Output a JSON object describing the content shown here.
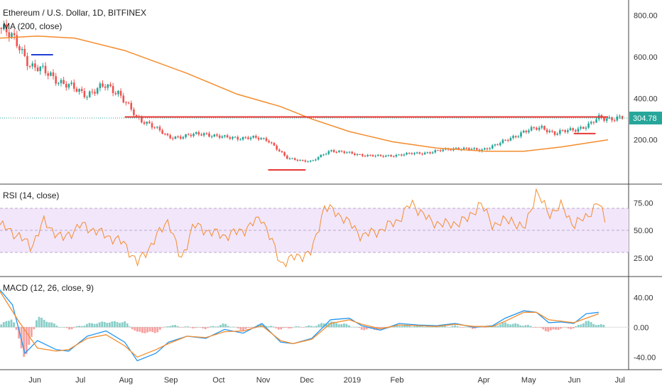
{
  "header": {
    "symbol": "Ethereum / U.S. Dollar, 1D, BITFINEX",
    "ma_label": "MA (200, close)",
    "rsi_label": "RSI (14, close)",
    "macd_label": "MACD (12, 26, close, 9)"
  },
  "colors": {
    "up": "#26a69a",
    "down": "#ef5350",
    "ma": "#f48c2c",
    "rsi_line": "#f48c2c",
    "rsi_band": "#f2e6fb",
    "macd_line": "#2196f3",
    "signal_line": "#f48c2c",
    "resistance": "#e53935",
    "marker_blue": "#1f3fd8",
    "last_price_bg": "#26a69a"
  },
  "chart_data": [
    {
      "type": "candlestick",
      "pane": "price",
      "title": "Ethereum / U.S. Dollar, 1D, BITFINEX",
      "yticks": [
        "800.00",
        "600.00",
        "400.00",
        "200.00"
      ],
      "ytick_values": [
        800,
        600,
        400,
        200
      ],
      "ylim": [
        0,
        860
      ],
      "last_price": "304.78",
      "last_price_value": 304.78,
      "xticks": [
        "Jun",
        "Jul",
        "Aug",
        "Sep",
        "Oct",
        "Nov",
        "Dec",
        "2019",
        "Feb",
        "Apr",
        "May",
        "Jun",
        "Jul"
      ],
      "series": [
        {
          "name": "MA (200, close)",
          "points": [
            [
              0,
              690
            ],
            [
              0.06,
              700
            ],
            [
              0.12,
              690
            ],
            [
              0.2,
              630
            ],
            [
              0.3,
              520
            ],
            [
              0.38,
              420
            ],
            [
              0.45,
              360
            ],
            [
              0.5,
              300
            ],
            [
              0.56,
              240
            ],
            [
              0.63,
              190
            ],
            [
              0.7,
              160
            ],
            [
              0.78,
              145
            ],
            [
              0.84,
              145
            ],
            [
              0.9,
              165
            ],
            [
              0.975,
              200
            ]
          ]
        },
        {
          "name": "close",
          "points": [
            [
              0,
              740
            ],
            [
              0.03,
              660
            ],
            [
              0.05,
              550
            ],
            [
              0.08,
              520
            ],
            [
              0.1,
              470
            ],
            [
              0.14,
              420
            ],
            [
              0.17,
              460
            ],
            [
              0.19,
              430
            ],
            [
              0.22,
              300
            ],
            [
              0.24,
              280
            ],
            [
              0.27,
              210
            ],
            [
              0.3,
              220
            ],
            [
              0.33,
              230
            ],
            [
              0.36,
              210
            ],
            [
              0.4,
              210
            ],
            [
              0.43,
              200
            ],
            [
              0.46,
              110
            ],
            [
              0.5,
              95
            ],
            [
              0.53,
              150
            ],
            [
              0.57,
              130
            ],
            [
              0.61,
              120
            ],
            [
              0.65,
              130
            ],
            [
              0.69,
              140
            ],
            [
              0.73,
              160
            ],
            [
              0.77,
              150
            ],
            [
              0.8,
              180
            ],
            [
              0.84,
              240
            ],
            [
              0.87,
              260
            ],
            [
              0.89,
              230
            ],
            [
              0.92,
              250
            ],
            [
              0.945,
              270
            ],
            [
              0.96,
              304.78
            ]
          ]
        }
      ],
      "annotations": [
        {
          "label": "resistance",
          "y": 310,
          "x_from": 0.2,
          "x_to": 0.975
        },
        {
          "label": "blue marker",
          "y": 610,
          "x_from": 0.05,
          "x_to": 0.085
        },
        {
          "label": "support",
          "y": 55,
          "x_from": 0.43,
          "x_to": 0.49
        },
        {
          "label": "support",
          "y": 230,
          "x_from": 0.92,
          "x_to": 0.955
        }
      ]
    },
    {
      "type": "line",
      "pane": "rsi",
      "title": "RSI (14, close)",
      "yticks": [
        "75.00",
        "50.00",
        "25.00"
      ],
      "ytick_values": [
        75,
        50,
        25
      ],
      "ylim": [
        10,
        90
      ],
      "band": [
        30,
        70
      ],
      "series": [
        {
          "name": "RSI",
          "points": [
            [
              0,
              55
            ],
            [
              0.03,
              45
            ],
            [
              0.05,
              35
            ],
            [
              0.07,
              58
            ],
            [
              0.1,
              42
            ],
            [
              0.13,
              55
            ],
            [
              0.16,
              48
            ],
            [
              0.2,
              38
            ],
            [
              0.22,
              20
            ],
            [
              0.24,
              35
            ],
            [
              0.27,
              60
            ],
            [
              0.29,
              22
            ],
            [
              0.31,
              55
            ],
            [
              0.33,
              50
            ],
            [
              0.36,
              45
            ],
            [
              0.39,
              50
            ],
            [
              0.42,
              62
            ],
            [
              0.45,
              20
            ],
            [
              0.47,
              25
            ],
            [
              0.5,
              30
            ],
            [
              0.52,
              72
            ],
            [
              0.55,
              62
            ],
            [
              0.58,
              45
            ],
            [
              0.61,
              50
            ],
            [
              0.64,
              60
            ],
            [
              0.66,
              75
            ],
            [
              0.69,
              58
            ],
            [
              0.72,
              55
            ],
            [
              0.75,
              60
            ],
            [
              0.77,
              75
            ],
            [
              0.79,
              55
            ],
            [
              0.82,
              60
            ],
            [
              0.84,
              50
            ],
            [
              0.86,
              85
            ],
            [
              0.88,
              65
            ],
            [
              0.9,
              72
            ],
            [
              0.92,
              55
            ],
            [
              0.94,
              62
            ],
            [
              0.96,
              76
            ],
            [
              0.97,
              58
            ]
          ]
        }
      ]
    },
    {
      "type": "line",
      "pane": "macd",
      "title": "MACD (12, 26, close, 9)",
      "yticks": [
        "40.00",
        "0.00",
        "-40.00"
      ],
      "ytick_values": [
        40,
        0,
        -40
      ],
      "ylim": [
        -55,
        65
      ],
      "series": [
        {
          "name": "MACD",
          "points": [
            [
              0,
              50
            ],
            [
              0.02,
              30
            ],
            [
              0.04,
              -35
            ],
            [
              0.06,
              -18
            ],
            [
              0.09,
              -30
            ],
            [
              0.11,
              -32
            ],
            [
              0.14,
              -12
            ],
            [
              0.17,
              -5
            ],
            [
              0.2,
              -20
            ],
            [
              0.22,
              -45
            ],
            [
              0.25,
              -35
            ],
            [
              0.27,
              -20
            ],
            [
              0.3,
              -12
            ],
            [
              0.33,
              -15
            ],
            [
              0.36,
              -3
            ],
            [
              0.39,
              -8
            ],
            [
              0.42,
              5
            ],
            [
              0.45,
              -20
            ],
            [
              0.47,
              -22
            ],
            [
              0.5,
              -15
            ],
            [
              0.53,
              10
            ],
            [
              0.56,
              12
            ],
            [
              0.58,
              2
            ],
            [
              0.61,
              -4
            ],
            [
              0.64,
              5
            ],
            [
              0.67,
              3
            ],
            [
              0.7,
              2
            ],
            [
              0.73,
              5
            ],
            [
              0.76,
              0
            ],
            [
              0.79,
              2
            ],
            [
              0.81,
              12
            ],
            [
              0.84,
              22
            ],
            [
              0.86,
              20
            ],
            [
              0.88,
              6
            ],
            [
              0.9,
              7
            ],
            [
              0.92,
              5
            ],
            [
              0.94,
              18
            ],
            [
              0.96,
              20
            ]
          ]
        },
        {
          "name": "Signal",
          "points": [
            [
              0,
              48
            ],
            [
              0.03,
              8
            ],
            [
              0.06,
              -28
            ],
            [
              0.09,
              -32
            ],
            [
              0.11,
              -30
            ],
            [
              0.14,
              -15
            ],
            [
              0.17,
              -10
            ],
            [
              0.2,
              -25
            ],
            [
              0.22,
              -40
            ],
            [
              0.25,
              -30
            ],
            [
              0.27,
              -22
            ],
            [
              0.3,
              -12
            ],
            [
              0.33,
              -14
            ],
            [
              0.36,
              -6
            ],
            [
              0.39,
              -5
            ],
            [
              0.42,
              2
            ],
            [
              0.45,
              -18
            ],
            [
              0.47,
              -22
            ],
            [
              0.5,
              -16
            ],
            [
              0.53,
              5
            ],
            [
              0.56,
              10
            ],
            [
              0.58,
              4
            ],
            [
              0.61,
              -2
            ],
            [
              0.64,
              3
            ],
            [
              0.67,
              2
            ],
            [
              0.7,
              1
            ],
            [
              0.73,
              4
            ],
            [
              0.76,
              1
            ],
            [
              0.79,
              1
            ],
            [
              0.81,
              8
            ],
            [
              0.84,
              20
            ],
            [
              0.86,
              20
            ],
            [
              0.88,
              10
            ],
            [
              0.9,
              8
            ],
            [
              0.92,
              6
            ],
            [
              0.94,
              12
            ],
            [
              0.96,
              18
            ]
          ]
        }
      ]
    }
  ]
}
